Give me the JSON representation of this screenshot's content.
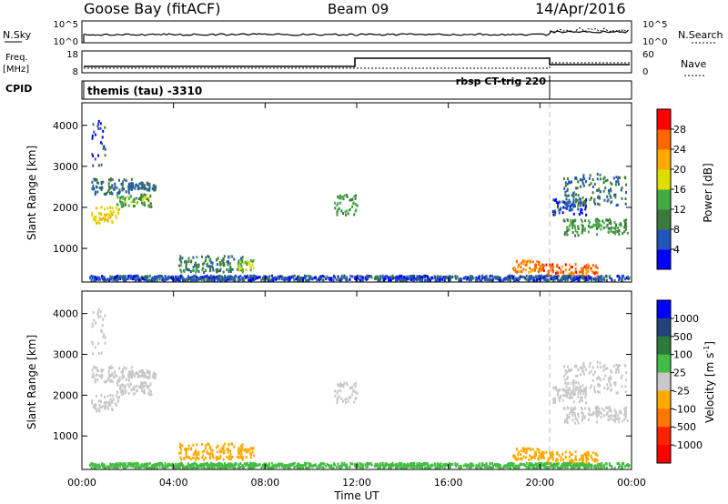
{
  "header": {
    "station": "Goose Bay (fitACF)",
    "beam": "Beam 09",
    "date": "14/Apr/2016"
  },
  "noise_panel": {
    "left_label": "N.Sky",
    "left_ticks": [
      "10^5",
      "10^0"
    ],
    "right_ticks": [
      "10^5",
      "10^0"
    ],
    "right_label": "N.Search"
  },
  "freq_panel": {
    "left_label_1": "Freq.",
    "left_label_2": "[MHz]",
    "left_ticks": [
      "18",
      "8"
    ],
    "right_ticks": [
      "60",
      "0"
    ],
    "right_label": "Nave"
  },
  "cpid_panel": {
    "label": "CPID",
    "program_1": "themis (tau) -3310",
    "program_2": "rbsp CT-trig 220"
  },
  "axes": {
    "ylabel": "Slant Range [km]",
    "xlabel": "Time UT",
    "y_ticks": [
      "1000",
      "2000",
      "3000",
      "4000"
    ],
    "x_ticks": [
      "00:00",
      "04:00",
      "08:00",
      "12:00",
      "16:00",
      "20:00",
      "00:00"
    ]
  },
  "power_colorbar": {
    "label": "Power [dB]",
    "ticks": [
      "4",
      "8",
      "12",
      "16",
      "20",
      "24",
      "28"
    ],
    "colors": [
      "#0000ff",
      "#2255bb",
      "#3b7a3b",
      "#44aa44",
      "#dddd00",
      "#ffaa00",
      "#ff6600",
      "#ff0000"
    ]
  },
  "velocity_colorbar": {
    "label": "Velocity [m s",
    "label_sup": "-1",
    "label_end": "]",
    "ticks": [
      "1000",
      "500",
      "100",
      "25",
      "-25",
      "-100",
      "-500",
      "-1000"
    ],
    "colors": [
      "#0000ff",
      "#22447a",
      "#2f7a3a",
      "#44bb44",
      "#c8c8c8",
      "#ffaa00",
      "#ff7700",
      "#ff2200",
      "#ff0000"
    ]
  },
  "chart_data": {
    "type": "heatmap",
    "x_range_hours": [
      0,
      24
    ],
    "y_range_km": [
      180,
      4550
    ],
    "program_change_hour": 20.5,
    "regions": [
      {
        "t0": 0.4,
        "t1": 2.2,
        "r0": 2300,
        "r1": 2700,
        "power": 8,
        "velocity": "25"
      },
      {
        "t0": 0.4,
        "t1": 1.6,
        "r0": 1600,
        "r1": 2000,
        "power": 20,
        "velocity": "25"
      },
      {
        "t0": 1.5,
        "t1": 3.0,
        "r0": 2000,
        "r1": 2300,
        "power": 14,
        "velocity": "25"
      },
      {
        "t0": 2.0,
        "t1": 3.2,
        "r0": 2400,
        "r1": 2600,
        "power": 8,
        "velocity": "25"
      },
      {
        "t0": 0.4,
        "t1": 1.0,
        "r0": 3000,
        "r1": 4100,
        "power": 6,
        "velocity": "25"
      },
      {
        "t0": 11.0,
        "t1": 12.0,
        "r0": 1800,
        "r1": 2300,
        "power": 12,
        "velocity": "25"
      },
      {
        "t0": 4.2,
        "t1": 7.0,
        "r0": 400,
        "r1": 800,
        "power": 10,
        "velocity": "-100"
      },
      {
        "t0": 6.8,
        "t1": 7.5,
        "r0": 450,
        "r1": 700,
        "power": 16,
        "velocity": "-100"
      },
      {
        "t0": 18.8,
        "t1": 20.0,
        "r0": 400,
        "r1": 700,
        "power": 24,
        "velocity": "-100"
      },
      {
        "t0": 20.0,
        "t1": 22.5,
        "r0": 300,
        "r1": 600,
        "power": 26,
        "velocity": "-100"
      },
      {
        "t0": 21.0,
        "t1": 23.8,
        "r0": 1300,
        "r1": 1700,
        "power": 12,
        "velocity": "25"
      },
      {
        "t0": 21.0,
        "t1": 23.8,
        "r0": 2000,
        "r1": 2800,
        "power": 8,
        "velocity": "25"
      },
      {
        "t0": 20.5,
        "t1": 22.0,
        "r0": 1800,
        "r1": 2200,
        "power": 6,
        "velocity": "25"
      },
      {
        "t0": 0.3,
        "t1": 23.9,
        "r0": 200,
        "r1": 320,
        "power": 6,
        "velocity": "100"
      }
    ]
  }
}
